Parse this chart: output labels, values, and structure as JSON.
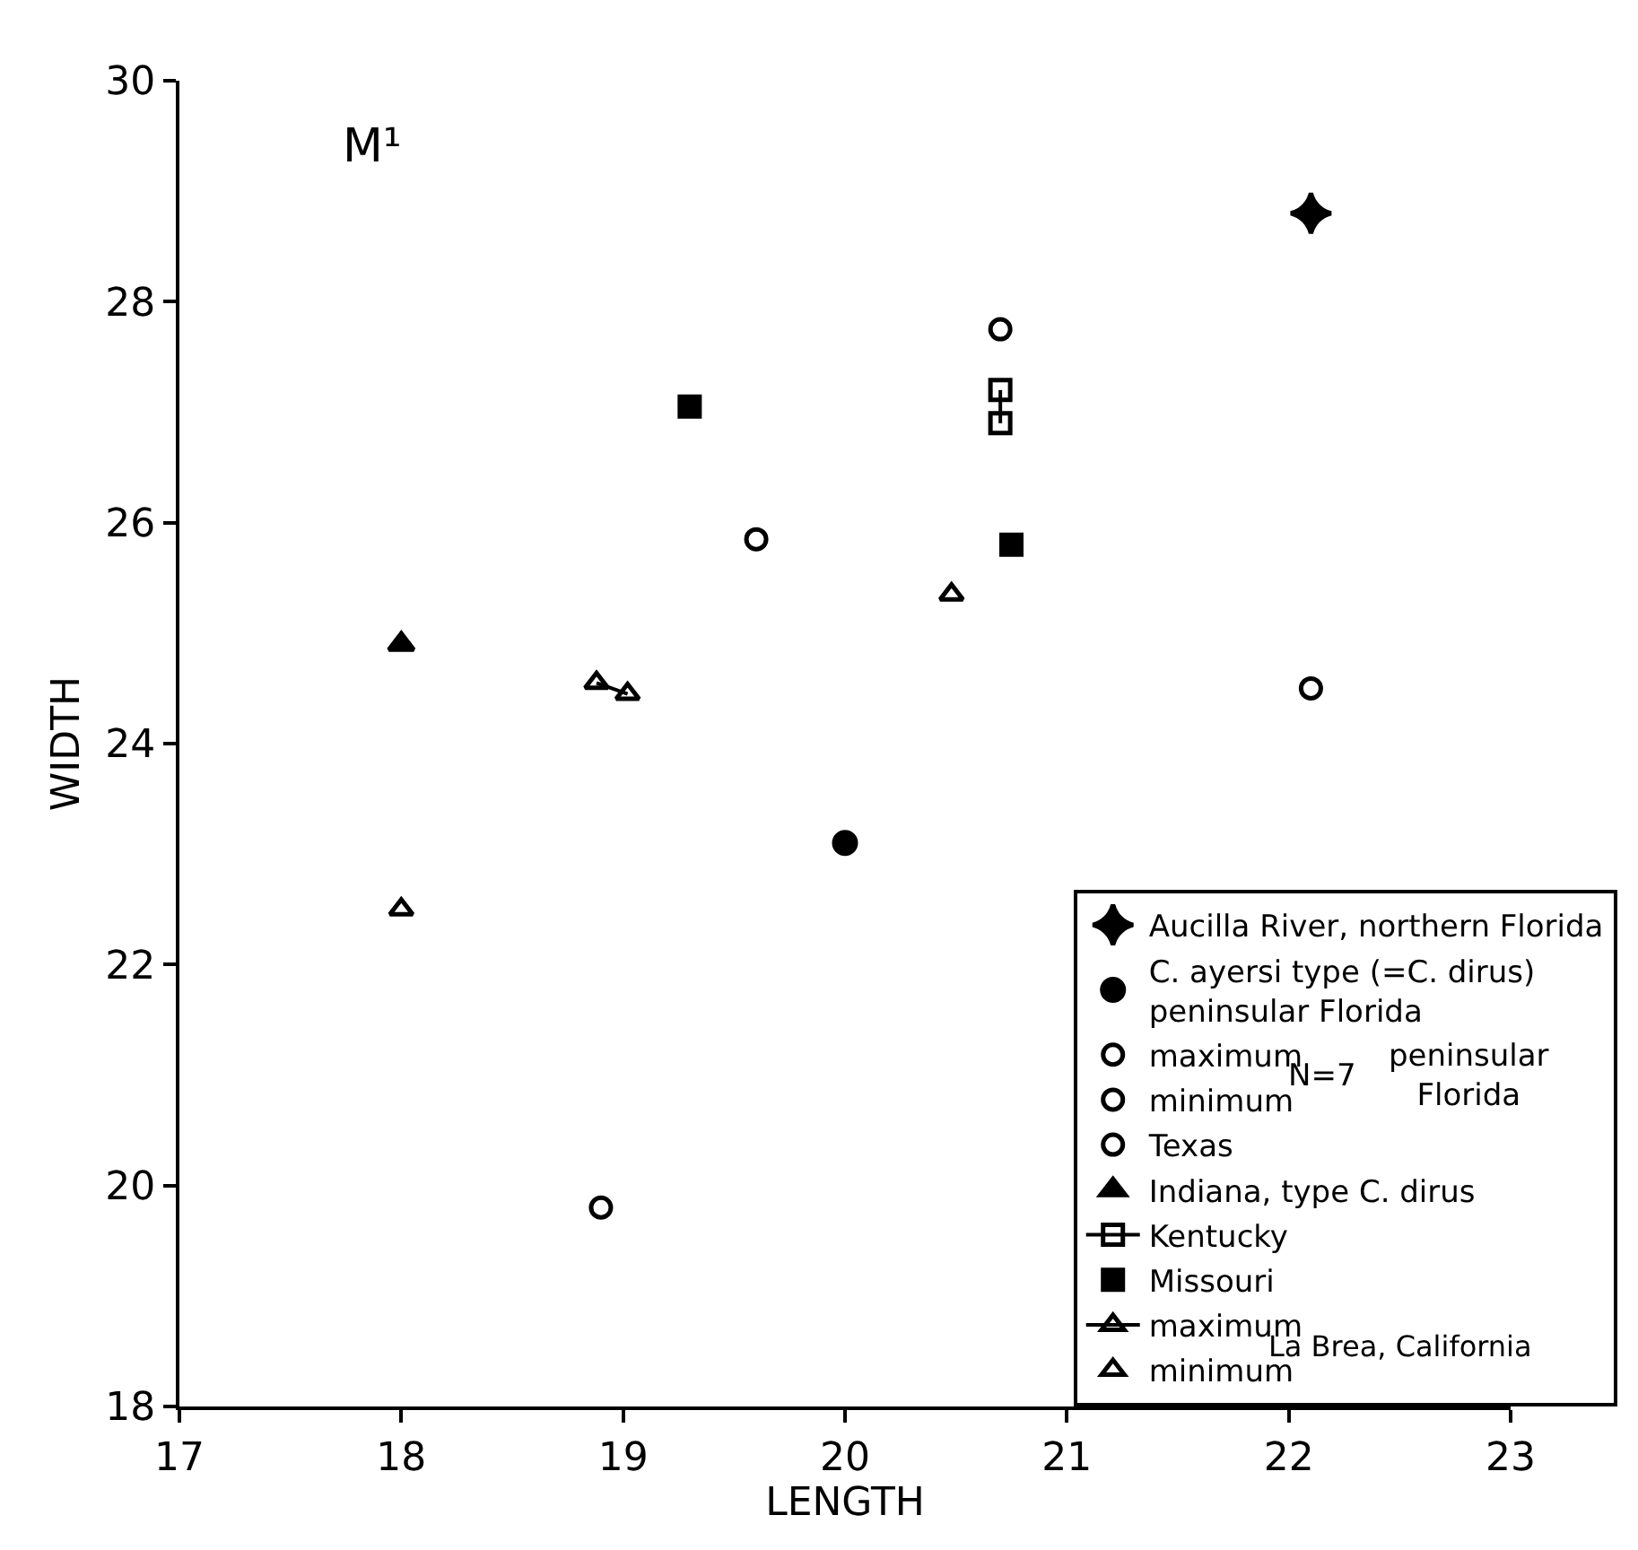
{
  "chart_data": {
    "type": "scatter",
    "xlabel": "LENGTH",
    "ylabel": "WIDTH",
    "xlim": [
      17,
      23
    ],
    "xticks": [
      17,
      18,
      19,
      20,
      21,
      22,
      23
    ],
    "ylim": [
      18,
      30
    ],
    "yticks": [
      18,
      20,
      22,
      24,
      26,
      28,
      30
    ],
    "grid": false,
    "legend": "bottom right",
    "annotations": [
      "M¹",
      "N=7",
      "peninsular\nFlorida",
      "La Brea, California"
    ],
    "series": [
      {
        "name": "Aucilla River, northern Florida",
        "color": "#000000",
        "marker": "star",
        "x": [
          22.1
        ],
        "values": [
          28.8
        ]
      },
      {
        "name": "C. ayersi type (=C. dirus)\npeninsular Florida",
        "color": "#000000",
        "marker": "circle",
        "x": [
          20.0
        ],
        "values": [
          23.1
        ]
      },
      {
        "name": "maximum",
        "color": "#000000",
        "marker": "circle-open",
        "x": [
          22.1
        ],
        "values": [
          24.5
        ]
      },
      {
        "name": "minimum",
        "color": "#000000",
        "marker": "circle-open",
        "x": [
          18.9
        ],
        "values": [
          19.8
        ]
      },
      {
        "name": "Texas",
        "color": "#000000",
        "marker": "circle-open",
        "x": [
          19.6,
          20.7
        ],
        "values": [
          25.85,
          27.75
        ]
      },
      {
        "name": "Indiana, type C. dirus",
        "color": "#000000",
        "marker": "triangle",
        "x": [
          18.0
        ],
        "values": [
          24.9
        ]
      },
      {
        "name": "Kentucky",
        "type": "line",
        "color": "#000000",
        "marker": "square-open",
        "x": [
          20.7,
          20.7
        ],
        "values": [
          27.2,
          26.9
        ]
      },
      {
        "name": "Missouri",
        "color": "#000000",
        "marker": "square",
        "x": [
          19.3,
          20.75
        ],
        "values": [
          27.05,
          25.8
        ]
      },
      {
        "name": "maximum",
        "type": "line",
        "color": "#000000",
        "marker": "triangle-open",
        "x": [
          18.88,
          19.02
        ],
        "values": [
          24.55,
          24.45
        ]
      },
      {
        "color": "#000000",
        "marker": "triangle-open",
        "x": [
          20.48
        ],
        "values": [
          25.35
        ]
      },
      {
        "name": "minimum",
        "color": "#000000",
        "marker": "triangle-open",
        "x": [
          18.0
        ],
        "values": [
          22.5
        ]
      }
    ]
  }
}
